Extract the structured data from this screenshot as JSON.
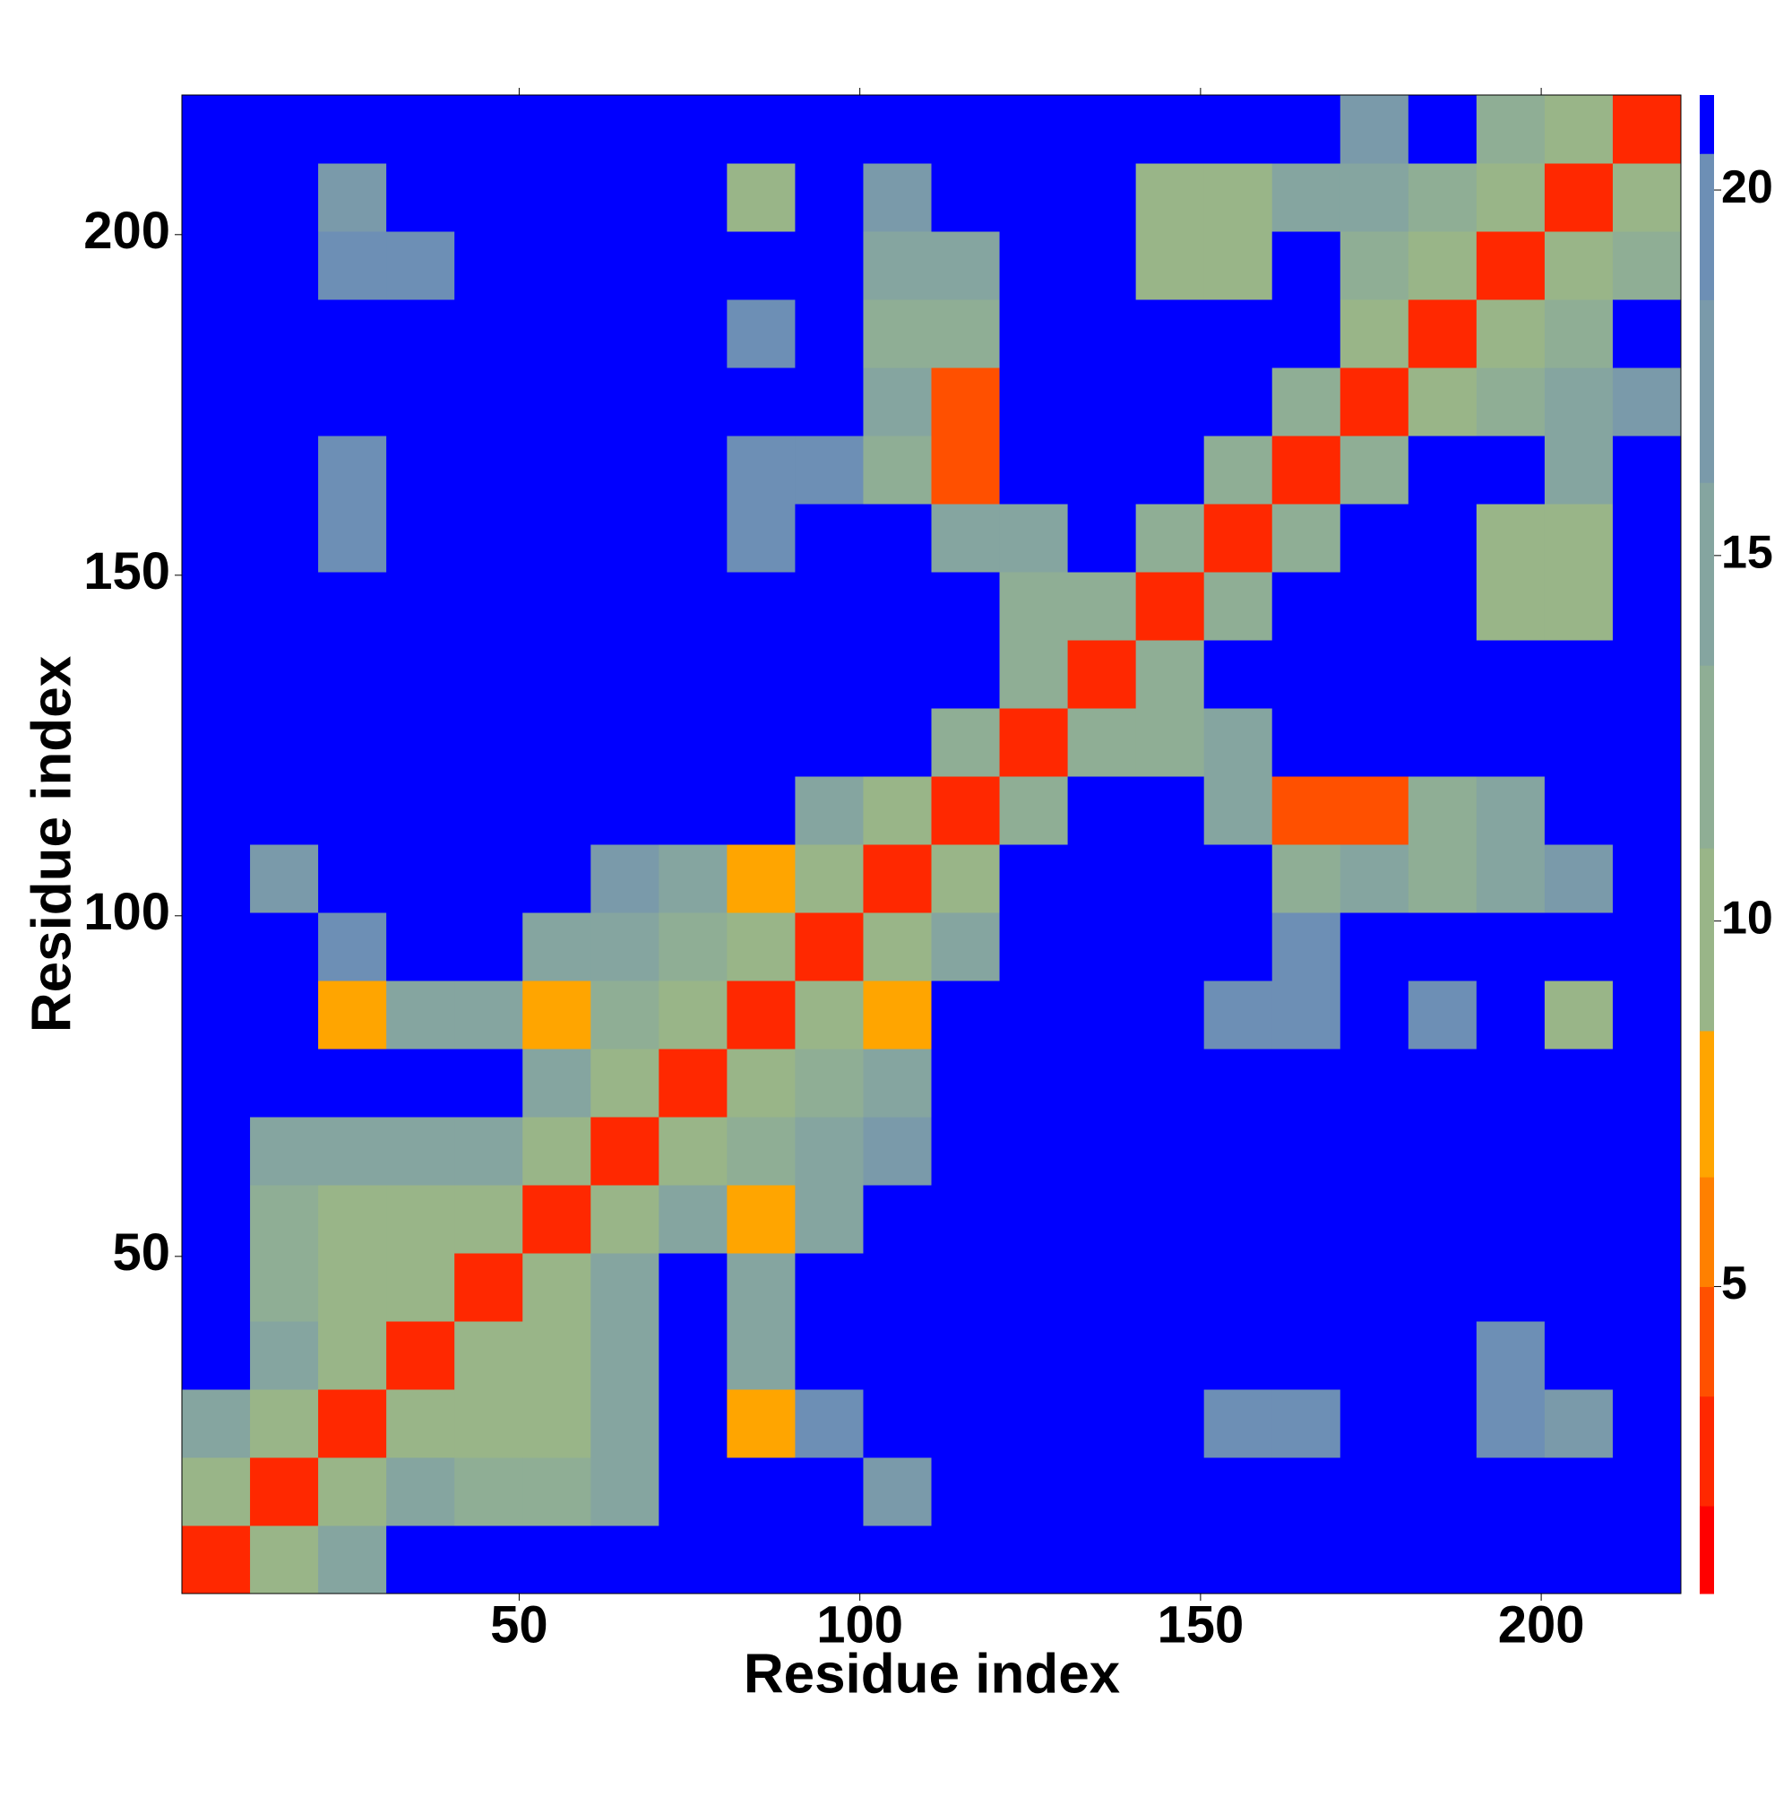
{
  "chart_data": {
    "type": "heatmap",
    "xlabel": "Residue index",
    "ylabel": "Residue index",
    "xbins": [
      0.5,
      10.5,
      20.5,
      30.5,
      40.5,
      50.5,
      60.5,
      70.5,
      80.5,
      90.5,
      100.5,
      110.5,
      120.5,
      130.5,
      140.5,
      150.5,
      160.5,
      170.5,
      180.5,
      190.5,
      200.5,
      210.5,
      220.5
    ],
    "ybins": [
      0.5,
      10.5,
      20.5,
      30.5,
      40.5,
      50.5,
      60.5,
      70.5,
      80.5,
      90.5,
      100.5,
      110.5,
      120.5,
      130.5,
      140.5,
      150.5,
      160.5,
      170.5,
      180.5,
      190.5,
      200.5,
      210.5,
      220.5
    ],
    "xlim": [
      0.5,
      220.5
    ],
    "ylim": [
      0.5,
      220.5
    ],
    "xticks": [
      50,
      100,
      150,
      200
    ],
    "yticks": [
      50,
      100,
      150,
      200
    ],
    "z": [
      [
        3,
        10,
        16,
        21,
        21,
        21,
        21,
        21,
        21,
        21,
        21,
        21,
        21,
        21,
        21,
        21,
        21,
        21,
        21,
        21,
        21,
        21
      ],
      [
        10,
        3,
        10,
        16,
        12,
        12,
        16,
        21,
        21,
        21,
        17,
        21,
        21,
        21,
        21,
        21,
        21,
        21,
        21,
        21,
        21,
        21
      ],
      [
        16,
        10,
        3,
        10,
        11,
        11,
        14,
        21,
        8,
        19,
        21,
        21,
        21,
        21,
        21,
        19,
        19,
        21,
        21,
        19,
        18,
        21
      ],
      [
        21,
        16,
        10,
        3,
        10,
        11,
        16,
        21,
        16,
        21,
        21,
        21,
        21,
        21,
        21,
        21,
        21,
        21,
        21,
        19,
        21,
        21
      ],
      [
        21,
        12,
        11,
        10,
        3,
        10,
        16,
        21,
        16,
        21,
        21,
        21,
        21,
        21,
        21,
        21,
        21,
        21,
        21,
        21,
        21,
        21
      ],
      [
        21,
        12,
        11,
        11,
        10,
        3,
        10,
        16,
        7,
        14,
        21,
        21,
        21,
        21,
        21,
        21,
        21,
        21,
        21,
        21,
        21,
        21
      ],
      [
        21,
        16,
        14,
        16,
        16,
        10,
        3,
        10,
        13,
        14,
        17,
        21,
        21,
        21,
        21,
        21,
        21,
        21,
        21,
        21,
        21,
        21
      ],
      [
        21,
        21,
        21,
        21,
        21,
        16,
        10,
        3,
        10,
        12,
        16,
        21,
        21,
        21,
        21,
        21,
        21,
        21,
        21,
        21,
        21,
        21
      ],
      [
        21,
        21,
        8,
        16,
        16,
        7,
        13,
        10,
        3,
        10,
        8,
        21,
        21,
        21,
        21,
        19,
        19,
        21,
        19,
        21,
        9,
        21
      ],
      [
        21,
        21,
        19,
        21,
        21,
        14,
        14,
        12,
        10,
        3,
        10,
        16,
        21,
        21,
        21,
        21,
        19,
        21,
        21,
        21,
        21,
        21
      ],
      [
        21,
        17,
        21,
        21,
        21,
        21,
        17,
        16,
        8,
        10,
        3,
        10,
        21,
        21,
        21,
        21,
        13,
        14,
        13,
        14,
        17,
        21
      ],
      [
        21,
        21,
        21,
        21,
        21,
        21,
        21,
        21,
        21,
        16,
        10,
        3,
        12,
        21,
        21,
        15,
        5,
        5,
        13,
        14,
        21,
        21
      ],
      [
        21,
        21,
        21,
        21,
        21,
        21,
        21,
        21,
        21,
        21,
        21,
        12,
        3,
        12,
        13,
        14,
        21,
        21,
        21,
        21,
        21,
        21
      ],
      [
        21,
        21,
        21,
        21,
        21,
        21,
        21,
        21,
        21,
        21,
        21,
        21,
        12,
        3,
        12,
        21,
        21,
        21,
        21,
        21,
        21,
        21
      ],
      [
        21,
        21,
        21,
        21,
        21,
        21,
        21,
        21,
        21,
        21,
        21,
        21,
        13,
        12,
        3,
        12,
        21,
        21,
        21,
        9,
        10,
        21
      ],
      [
        21,
        21,
        19,
        21,
        21,
        21,
        21,
        21,
        19,
        21,
        21,
        15,
        14,
        21,
        12,
        3,
        12,
        21,
        21,
        9,
        11,
        21
      ],
      [
        21,
        21,
        19,
        21,
        21,
        21,
        21,
        21,
        19,
        19,
        13,
        5,
        21,
        21,
        21,
        12,
        3,
        12,
        21,
        21,
        16,
        21
      ],
      [
        21,
        21,
        21,
        21,
        21,
        21,
        21,
        21,
        21,
        21,
        14,
        5,
        21,
        21,
        21,
        21,
        12,
        3,
        10,
        13,
        14,
        17
      ],
      [
        21,
        21,
        21,
        21,
        21,
        21,
        21,
        21,
        19,
        21,
        13,
        13,
        21,
        21,
        21,
        21,
        21,
        10,
        3,
        10,
        13,
        21
      ],
      [
        21,
        21,
        19,
        19,
        21,
        21,
        21,
        21,
        21,
        21,
        14,
        14,
        21,
        21,
        9,
        9,
        21,
        13,
        10,
        3,
        10,
        13
      ],
      [
        21,
        21,
        18,
        21,
        21,
        21,
        21,
        21,
        9,
        21,
        17,
        21,
        21,
        21,
        10,
        11,
        16,
        14,
        13,
        10,
        3,
        10
      ],
      [
        21,
        21,
        21,
        21,
        21,
        21,
        21,
        21,
        21,
        21,
        21,
        21,
        21,
        21,
        21,
        21,
        21,
        17,
        21,
        13,
        10,
        3
      ]
    ],
    "clim": [
      0.8,
      21.3
    ],
    "cticks": [
      5,
      10,
      15,
      20
    ],
    "colorscale": [
      {
        "upto": 2,
        "color": "#ff0000"
      },
      {
        "upto": 3.5,
        "color": "#ff2800"
      },
      {
        "upto": 5,
        "color": "#ff5000"
      },
      {
        "upto": 6.5,
        "color": "#ff8000"
      },
      {
        "upto": 8.5,
        "color": "#ffa500"
      },
      {
        "upto": 11,
        "color": "#99b588"
      },
      {
        "upto": 13.5,
        "color": "#8fae95"
      },
      {
        "upto": 16,
        "color": "#85a5a0"
      },
      {
        "upto": 18.5,
        "color": "#7a9aaa"
      },
      {
        "upto": 20.5,
        "color": "#6d8fb5"
      },
      {
        "upto": 21.3,
        "color": "#0000ff"
      }
    ]
  }
}
